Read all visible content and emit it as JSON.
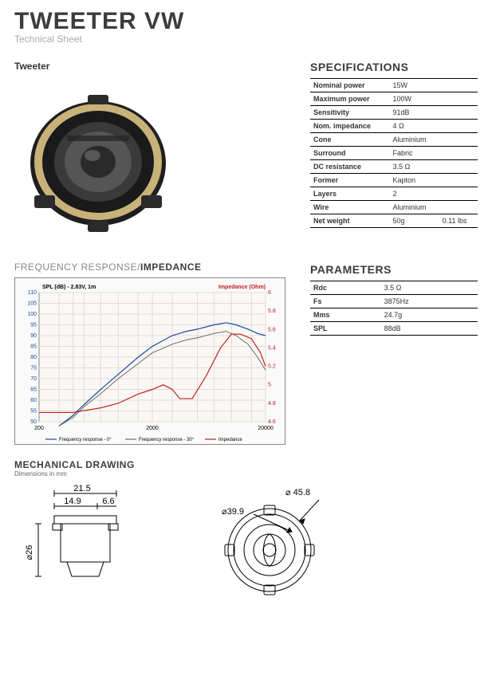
{
  "title": "TWEETER VW",
  "subtitle": "Technical Sheet",
  "product_label": "Tweeter",
  "specifications": {
    "heading": "SPECIFICATIONS",
    "rows": [
      {
        "k": "Nominal power",
        "v": "15W"
      },
      {
        "k": "Maximum power",
        "v": "100W"
      },
      {
        "k": "Sensitivity",
        "v": "91dB"
      },
      {
        "k": "Nom. impedance",
        "v": "4 Ω"
      },
      {
        "k": "Cone",
        "v": "Aluminium"
      },
      {
        "k": "Surround",
        "v": "Fabric"
      },
      {
        "k": "DC resistance",
        "v": "3.5 Ω"
      },
      {
        "k": "Former",
        "v": "Kapton"
      },
      {
        "k": "Layers",
        "v": "2"
      },
      {
        "k": "Wire",
        "v": "Aluminium"
      },
      {
        "k": "Net weight",
        "v": "50g",
        "v2": "0.11 lbs"
      }
    ]
  },
  "parameters": {
    "heading": "PARAMETERS",
    "rows": [
      {
        "k": "Rdc",
        "v": "3.5 Ω"
      },
      {
        "k": "Fs",
        "v": "3875Hz"
      },
      {
        "k": "Mms",
        "v": "24.7g"
      },
      {
        "k": "SPL",
        "v": "88dB"
      }
    ]
  },
  "freq_section": {
    "heading_pre": "FREQUENCY RESPONSE/",
    "heading_bold": "IMPEDANCE",
    "chart": {
      "left_label": "SPL (dB) - 2.83V, 1m",
      "right_label": "Impedance (Ohm)",
      "y_left": {
        "min": 50,
        "max": 110,
        "ticks": [
          50,
          55,
          60,
          65,
          70,
          75,
          80,
          85,
          90,
          95,
          100,
          105,
          110
        ],
        "color": "#1b4aa0",
        "fontsize": 7
      },
      "y_right": {
        "min": 4.6,
        "max": 6.0,
        "ticks": [
          4.6,
          4.8,
          5.0,
          5.2,
          5.4,
          5.6,
          5.8,
          6.0
        ],
        "color": "#c02020",
        "fontsize": 7
      },
      "x": {
        "min": 200,
        "max": 20000,
        "scale": "log",
        "ticks": [
          200,
          2000,
          20000
        ],
        "tick_labels": [
          "200",
          "2000",
          "20000"
        ],
        "color": "#333",
        "fontsize": 7
      },
      "grid_color": "#e0dcd8",
      "background": "#faf8f5",
      "series": [
        {
          "name": "Frequency response - 0°",
          "axis": "left",
          "color": "#1b4aa0",
          "width": 1.2,
          "points": [
            [
              300,
              48
            ],
            [
              400,
              53
            ],
            [
              500,
              58
            ],
            [
              700,
              65
            ],
            [
              1000,
              72
            ],
            [
              1500,
              80
            ],
            [
              2000,
              85
            ],
            [
              3000,
              90
            ],
            [
              4000,
              92
            ],
            [
              5000,
              93
            ],
            [
              7000,
              95
            ],
            [
              9000,
              96
            ],
            [
              11000,
              95
            ],
            [
              14000,
              93
            ],
            [
              17000,
              91
            ],
            [
              20000,
              90
            ]
          ]
        },
        {
          "name": "Frequency response - 30°",
          "axis": "left",
          "color": "#6a6a6a",
          "width": 1.0,
          "points": [
            [
              300,
              48
            ],
            [
              400,
              52
            ],
            [
              500,
              57
            ],
            [
              700,
              63
            ],
            [
              1000,
              70
            ],
            [
              1500,
              77
            ],
            [
              2000,
              82
            ],
            [
              3000,
              86
            ],
            [
              4000,
              88
            ],
            [
              5000,
              89
            ],
            [
              7000,
              91
            ],
            [
              9000,
              92
            ],
            [
              11000,
              90
            ],
            [
              14000,
              86
            ],
            [
              17000,
              80
            ],
            [
              20000,
              74
            ]
          ]
        },
        {
          "name": "Impedance",
          "axis": "right",
          "color": "#c02020",
          "width": 1.2,
          "points": [
            [
              200,
              4.7
            ],
            [
              400,
              4.7
            ],
            [
              700,
              4.75
            ],
            [
              1000,
              4.8
            ],
            [
              1500,
              4.9
            ],
            [
              2000,
              4.95
            ],
            [
              2500,
              5.0
            ],
            [
              3000,
              4.95
            ],
            [
              3500,
              4.85
            ],
            [
              4500,
              4.85
            ],
            [
              6000,
              5.1
            ],
            [
              8000,
              5.4
            ],
            [
              10000,
              5.55
            ],
            [
              12000,
              5.55
            ],
            [
              15000,
              5.5
            ],
            [
              18000,
              5.35
            ],
            [
              20000,
              5.2
            ]
          ]
        }
      ],
      "legend": [
        "Frequency response - 0°",
        "Frequency response - 30°",
        "Impedance"
      ]
    }
  },
  "mechanical": {
    "heading": "MECHANICAL DRAWING",
    "sub": "Dimensions in mm",
    "side": {
      "outer": "21.5",
      "inner": "14.9",
      "lip": "6.6",
      "diameter": "⌀26"
    },
    "front": {
      "outer_d": "⌀ 45.8",
      "inner_d": "⌀39.9"
    }
  },
  "colors": {
    "text": "#3c3c3c",
    "muted": "#999",
    "rule": "#000",
    "accent_blue": "#1b4aa0",
    "accent_red": "#c02020",
    "ring": "#c9b27a",
    "body": "#2b2b2b"
  }
}
